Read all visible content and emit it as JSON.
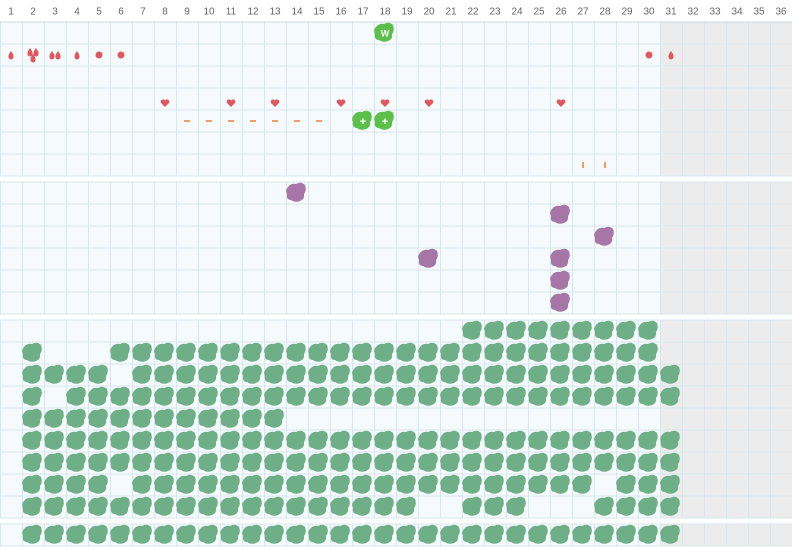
{
  "columns": [
    "1",
    "2",
    "3",
    "4",
    "5",
    "6",
    "7",
    "8",
    "9",
    "10",
    "11",
    "12",
    "13",
    "14",
    "15",
    "16",
    "17",
    "18",
    "19",
    "20",
    "21",
    "22",
    "23",
    "24",
    "25",
    "26",
    "27",
    "28",
    "29",
    "30",
    "31",
    "32",
    "33",
    "34",
    "35",
    "36"
  ],
  "badges": {
    "w": "W",
    "plus": [
      "+",
      "+"
    ]
  }
}
